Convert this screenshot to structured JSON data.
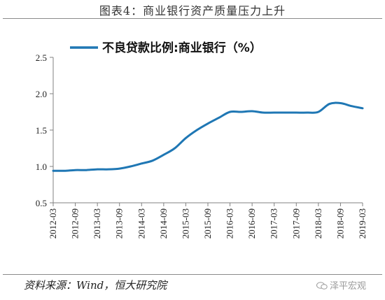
{
  "figure": {
    "title": "图表4：商业银行资产质量压力上升",
    "source": "资料来源：Wind，恒大研究院",
    "watermark": "泽平宏观"
  },
  "colors": {
    "series": "#1f77b4",
    "axis": "#808080",
    "text": "#222222"
  },
  "chart_data": {
    "type": "line",
    "title": "",
    "xlabel": "",
    "ylabel": "",
    "ylim": [
      0.5,
      2.5
    ],
    "yticks": [
      "0.5",
      "1.0",
      "1.5",
      "2.0",
      "2.5"
    ],
    "xticks": [
      "2012-03",
      "2012-09",
      "2013-03",
      "2013-09",
      "2014-03",
      "2014-09",
      "2015-03",
      "2015-09",
      "2016-03",
      "2016-09",
      "2017-03",
      "2017-09",
      "2018-03",
      "2018-09",
      "2019-03"
    ],
    "grid": false,
    "legend_position": "top",
    "series": [
      {
        "name": "不良贷款比例:商业银行（%）",
        "x": [
          "2012-03",
          "2012-06",
          "2012-09",
          "2012-12",
          "2013-03",
          "2013-06",
          "2013-09",
          "2013-12",
          "2014-03",
          "2014-06",
          "2014-09",
          "2014-12",
          "2015-03",
          "2015-06",
          "2015-09",
          "2015-12",
          "2016-03",
          "2016-06",
          "2016-09",
          "2016-12",
          "2017-03",
          "2017-06",
          "2017-09",
          "2017-12",
          "2018-03",
          "2018-06",
          "2018-09",
          "2018-12",
          "2019-03"
        ],
        "values": [
          0.94,
          0.94,
          0.95,
          0.95,
          0.96,
          0.96,
          0.97,
          1.0,
          1.04,
          1.08,
          1.16,
          1.25,
          1.39,
          1.5,
          1.59,
          1.67,
          1.75,
          1.75,
          1.76,
          1.74,
          1.74,
          1.74,
          1.74,
          1.74,
          1.75,
          1.86,
          1.87,
          1.83,
          1.8
        ]
      }
    ]
  }
}
